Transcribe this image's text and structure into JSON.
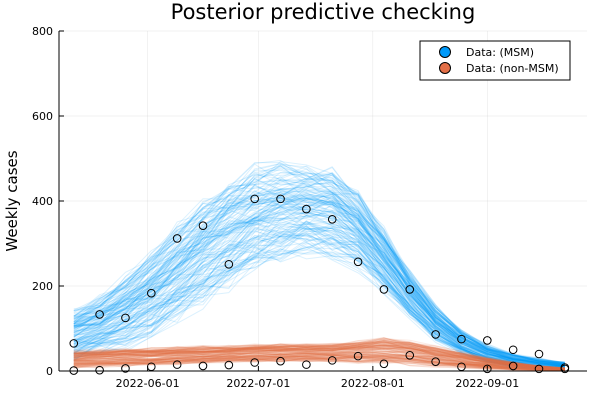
{
  "chart_data": {
    "type": "scatter",
    "title": "Posterior predictive checking",
    "xlabel": "",
    "ylabel": "Weekly cases",
    "x_ticks": [
      "2022-06-01",
      "2022-07-01",
      "2022-08-01",
      "2022-09-01"
    ],
    "y_ticks": [
      "0",
      "200",
      "400",
      "600",
      "800"
    ],
    "ylim": [
      0,
      800
    ],
    "xlim": [
      "2022-05-08",
      "2022-09-28"
    ],
    "grid": true,
    "legend_position": "top-right",
    "legend": [
      {
        "label": "Data: (MSM)",
        "color": "#009AFA"
      },
      {
        "label": "Data: (non-MSM)",
        "color": "#E36F47"
      }
    ],
    "x": [
      "2022-05-12",
      "2022-05-19",
      "2022-05-26",
      "2022-06-02",
      "2022-06-09",
      "2022-06-16",
      "2022-06-23",
      "2022-06-30",
      "2022-07-07",
      "2022-07-14",
      "2022-07-21",
      "2022-07-28",
      "2022-08-04",
      "2022-08-11",
      "2022-08-18",
      "2022-08-25",
      "2022-09-01",
      "2022-09-08",
      "2022-09-15",
      "2022-09-22"
    ],
    "series": [
      {
        "name": "Data: (MSM)",
        "values": [
          65,
          133,
          125,
          183,
          312,
          342,
          251,
          405,
          405,
          381,
          357,
          257,
          192,
          192,
          86,
          75,
          72,
          50,
          40,
          8
        ]
      },
      {
        "name": "Data: (non-MSM)",
        "values": [
          1,
          2,
          6,
          10,
          15,
          12,
          14,
          20,
          23,
          15,
          25,
          35,
          17,
          37,
          22,
          10,
          5,
          12,
          5,
          5
        ]
      }
    ],
    "simulated_bands": [
      {
        "for_series": "Data: (MSM)",
        "color": "#009AFA",
        "lower": [
          30,
          45,
          65,
          90,
          130,
          170,
          210,
          245,
          270,
          285,
          280,
          250,
          195,
          130,
          75,
          40,
          20,
          10,
          5,
          2
        ],
        "upper": [
          140,
          170,
          215,
          270,
          330,
          390,
          440,
          470,
          480,
          475,
          465,
          420,
          330,
          230,
          150,
          95,
          60,
          40,
          28,
          20
        ]
      },
      {
        "for_series": "Data: (non-MSM)",
        "color": "#E36F47",
        "lower": [
          10,
          12,
          14,
          16,
          18,
          20,
          22,
          24,
          25,
          25,
          25,
          24,
          22,
          18,
          14,
          10,
          6,
          4,
          2,
          1
        ],
        "upper": [
          45,
          48,
          50,
          52,
          54,
          56,
          58,
          60,
          62,
          62,
          62,
          68,
          75,
          68,
          55,
          42,
          30,
          20,
          12,
          7
        ]
      }
    ]
  }
}
